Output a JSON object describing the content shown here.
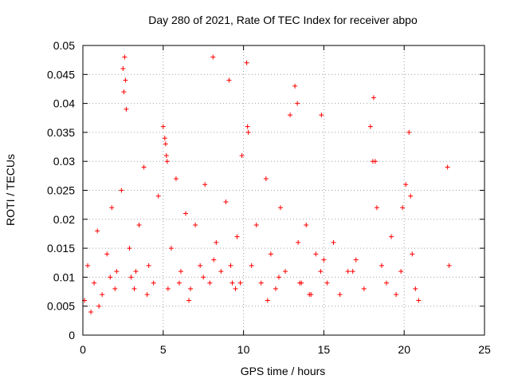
{
  "chart_data": {
    "type": "scatter",
    "title": "Day 280 of 2021, Rate Of TEC Index for receiver abpo",
    "xlabel": "GPS time / hours",
    "ylabel": "ROTI / TECUs",
    "xlim": [
      0,
      25
    ],
    "ylim": [
      0,
      0.05
    ],
    "xticks": [
      0,
      5,
      10,
      15,
      20,
      25
    ],
    "xtick_labels": [
      "0",
      "5",
      "10",
      "15",
      "20",
      "25"
    ],
    "yticks": [
      0,
      0.005,
      0.01,
      0.015,
      0.02,
      0.025,
      0.03,
      0.035,
      0.04,
      0.045,
      0.05
    ],
    "ytick_labels": [
      "0",
      "0.005",
      "0.01",
      "0.015",
      "0.02",
      "0.025",
      "0.03",
      "0.035",
      "0.04",
      "0.045",
      "0.05"
    ],
    "grid": true,
    "marker": "plus",
    "color": "#ff0000",
    "series": [
      {
        "x": [
          0.1,
          0.3,
          0.5,
          0.7,
          0.9,
          1.2,
          1.5,
          1.8,
          2.1,
          2.4,
          2.5,
          2.6,
          2.7,
          2.9,
          3.2,
          3.5,
          3.8,
          4.1,
          4.4,
          4.7,
          5.0,
          5.1,
          5.2,
          5.3,
          5.5,
          5.8,
          6.1,
          6.4,
          6.7,
          7.0,
          7.3,
          7.6,
          7.9,
          8.1,
          8.3,
          8.6,
          8.9,
          9.1,
          9.3,
          9.6,
          9.9,
          10.2,
          10.3,
          10.5,
          10.8,
          11.1,
          11.4,
          11.7,
          12.0,
          12.3,
          12.6,
          12.9,
          13.2,
          13.4,
          13.6,
          13.9,
          14.2,
          14.5,
          14.8,
          15.2,
          15.6,
          16.0,
          16.5,
          17.0,
          17.5,
          17.9,
          18.1,
          18.3,
          18.6,
          18.9,
          19.2,
          19.5,
          19.8,
          20.1,
          20.3,
          20.5,
          20.7,
          20.9,
          22.7,
          22.8,
          1.0,
          2.0,
          3.0,
          4.0,
          6.0,
          7.5,
          9.5,
          11.5,
          13.5,
          15.0,
          2.55,
          2.65,
          5.15,
          5.25,
          8.15,
          9.2,
          10.25,
          13.35,
          14.85,
          18.05,
          18.2,
          19.9,
          20.4,
          1.7,
          3.3,
          6.6,
          9.8,
          12.2,
          14.1,
          16.8
        ],
        "y": [
          0.006,
          0.012,
          0.004,
          0.009,
          0.018,
          0.007,
          0.014,
          0.022,
          0.011,
          0.025,
          0.046,
          0.048,
          0.039,
          0.015,
          0.008,
          0.019,
          0.029,
          0.012,
          0.009,
          0.024,
          0.036,
          0.034,
          0.031,
          0.008,
          0.015,
          0.027,
          0.011,
          0.021,
          0.008,
          0.019,
          0.012,
          0.026,
          0.009,
          0.048,
          0.016,
          0.011,
          0.023,
          0.044,
          0.009,
          0.017,
          0.031,
          0.047,
          0.035,
          0.012,
          0.019,
          0.009,
          0.027,
          0.014,
          0.008,
          0.022,
          0.011,
          0.038,
          0.043,
          0.016,
          0.009,
          0.019,
          0.007,
          0.014,
          0.011,
          0.009,
          0.016,
          0.007,
          0.011,
          0.013,
          0.008,
          0.036,
          0.041,
          0.022,
          0.012,
          0.009,
          0.017,
          0.007,
          0.011,
          0.026,
          0.035,
          0.014,
          0.008,
          0.006,
          0.029,
          0.012,
          0.005,
          0.008,
          0.01,
          0.007,
          0.009,
          0.01,
          0.008,
          0.006,
          0.009,
          0.013,
          0.042,
          0.044,
          0.033,
          0.03,
          0.013,
          0.012,
          0.036,
          0.04,
          0.038,
          0.03,
          0.03,
          0.022,
          0.024,
          0.01,
          0.011,
          0.006,
          0.009,
          0.01,
          0.007,
          0.011
        ]
      }
    ]
  }
}
